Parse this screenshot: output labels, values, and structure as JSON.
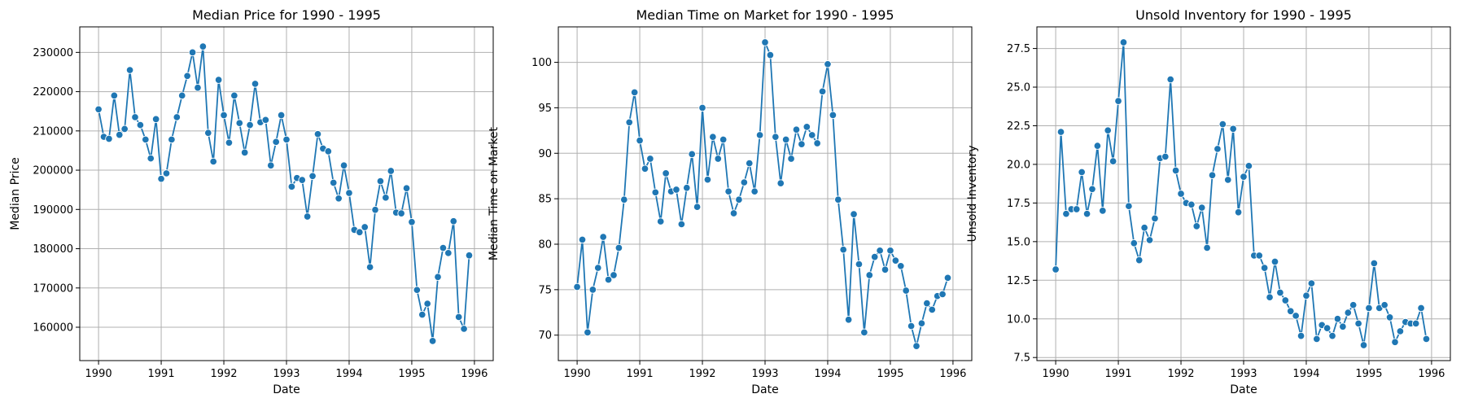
{
  "chart_data": [
    {
      "type": "line",
      "title": "Median Price for 1990 - 1995",
      "xlabel": "Date",
      "ylabel": "Median Price",
      "xlim": [
        1989.7,
        1996.3
      ],
      "ylim": [
        151500,
        236500
      ],
      "xticks": [
        1990,
        1991,
        1992,
        1993,
        1994,
        1995,
        1996
      ],
      "yticks": [
        160000,
        170000,
        180000,
        190000,
        200000,
        210000,
        220000,
        230000
      ],
      "grid": true,
      "marker": "circle",
      "color": "#1f77b4",
      "series": [
        {
          "x_start": 1990,
          "x_step": 0.0833333,
          "values": [
            215500,
            208500,
            208000,
            219000,
            209000,
            210500,
            225500,
            213500,
            211500,
            207800,
            203000,
            213000,
            197800,
            199200,
            207800,
            213500,
            219000,
            224000,
            230000,
            221000,
            231500,
            209500,
            202200,
            223000,
            214000,
            207000,
            219000,
            212000,
            204500,
            211500,
            222000,
            212200,
            212800,
            201200,
            207200,
            214000,
            207800,
            195800,
            198000,
            197500,
            188200,
            198500,
            209200,
            205500,
            204800,
            196800,
            192800,
            201200,
            194200,
            184800,
            184200,
            185500,
            175300,
            189900,
            197200,
            193000,
            199800,
            189200,
            189000,
            195400,
            186800,
            169500,
            163200,
            166000,
            156500,
            172800,
            180200,
            178900,
            187000,
            162600,
            159600,
            178300
          ]
        }
      ]
    },
    {
      "type": "line",
      "title": "Median Time on Market for 1990 - 1995",
      "xlabel": "Date",
      "ylabel": "Median Time on Market",
      "xlim": [
        1989.7,
        1996.3
      ],
      "ylim": [
        67.2,
        103.9
      ],
      "xticks": [
        1990,
        1991,
        1992,
        1993,
        1994,
        1995,
        1996
      ],
      "yticks": [
        70,
        75,
        80,
        85,
        90,
        95,
        100
      ],
      "grid": true,
      "marker": "circle",
      "color": "#1f77b4",
      "series": [
        {
          "x_start": 1990,
          "x_step": 0.0833333,
          "values": [
            75.3,
            80.5,
            70.3,
            75.0,
            77.4,
            80.8,
            76.1,
            76.6,
            79.6,
            84.9,
            93.4,
            96.7,
            91.4,
            88.3,
            89.4,
            85.7,
            82.5,
            87.8,
            85.8,
            86.0,
            82.2,
            86.2,
            89.9,
            84.1,
            95.0,
            87.1,
            91.8,
            89.4,
            91.5,
            85.8,
            83.4,
            84.9,
            86.8,
            88.9,
            85.8,
            92.0,
            102.2,
            100.8,
            91.8,
            86.7,
            91.5,
            89.4,
            92.6,
            91.0,
            92.9,
            92.0,
            91.1,
            96.8,
            99.8,
            94.2,
            84.9,
            79.4,
            71.7,
            83.3,
            77.8,
            70.3,
            76.6,
            78.6,
            79.3,
            77.2,
            79.3,
            78.2,
            77.6,
            74.9,
            71.0,
            68.8,
            71.3,
            73.5,
            72.8,
            74.3,
            74.5,
            76.3
          ]
        }
      ]
    },
    {
      "type": "line",
      "title": "Unsold Inventory for 1990 - 1995",
      "xlabel": "Date",
      "ylabel": "Unsold Inventory",
      "xlim": [
        1989.7,
        1996.3
      ],
      "ylim": [
        7.3,
        28.9
      ],
      "xticks": [
        1990,
        1991,
        1992,
        1993,
        1994,
        1995,
        1996
      ],
      "yticks": [
        7.5,
        10.0,
        12.5,
        15.0,
        17.5,
        20.0,
        22.5,
        25.0,
        27.5
      ],
      "grid": true,
      "marker": "circle",
      "color": "#1f77b4",
      "series": [
        {
          "x_start": 1990,
          "x_step": 0.0833333,
          "values": [
            13.2,
            22.1,
            16.8,
            17.1,
            17.1,
            19.5,
            16.8,
            18.4,
            21.2,
            17.0,
            22.2,
            20.2,
            24.1,
            27.9,
            17.3,
            14.9,
            13.8,
            15.9,
            15.1,
            16.5,
            20.4,
            20.5,
            25.5,
            19.6,
            18.1,
            17.5,
            17.4,
            16.0,
            17.2,
            14.6,
            19.3,
            21.0,
            22.6,
            19.0,
            22.3,
            16.9,
            19.2,
            19.9,
            14.1,
            14.1,
            13.3,
            11.4,
            13.7,
            11.7,
            11.2,
            10.5,
            10.2,
            8.9,
            11.5,
            12.3,
            8.7,
            9.6,
            9.4,
            8.9,
            10.0,
            9.5,
            10.4,
            10.9,
            9.7,
            8.3,
            10.7,
            13.6,
            10.7,
            10.9,
            10.1,
            8.5,
            9.2,
            9.8,
            9.7,
            9.7,
            10.7,
            8.7
          ]
        }
      ]
    }
  ]
}
